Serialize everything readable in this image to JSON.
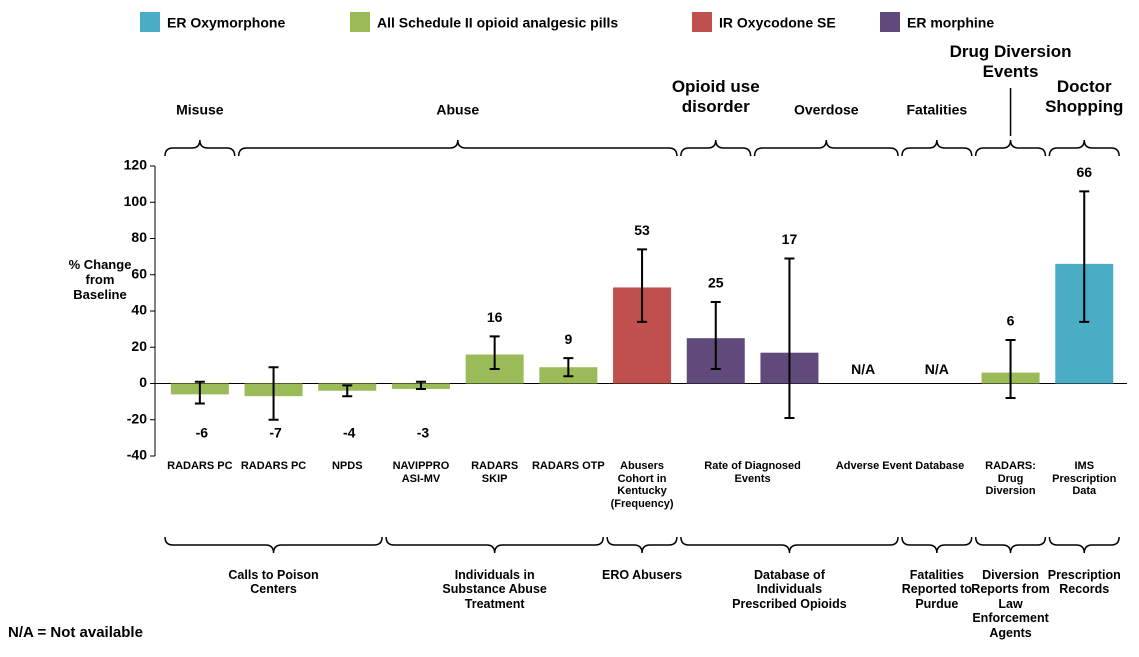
{
  "chart_data": {
    "type": "bar",
    "legend": [
      {
        "name": "ER Oxymorphone",
        "color": "#4bacc6"
      },
      {
        "name": "All Schedule II opioid analgesic pills",
        "color": "#9bbb59"
      },
      {
        "name": "IR Oxycodone SE",
        "color": "#c0504d"
      },
      {
        "name": "ER morphine",
        "color": "#604a7b"
      }
    ],
    "y_label": "% Change from Baseline",
    "categories": [
      "RADARS PC",
      "RADARS PC",
      "NPDS",
      "NAVIPPRO ASI-MV",
      "RADARS SKIP",
      "RADARS OTP",
      "Abusers Cohort in Kentucky (Frequency)",
      "Rate of Diagnosed Events",
      null,
      "Adverse Event Database",
      null,
      "RADARS: Drug Diversion",
      "IMS Prescription Data"
    ],
    "values": [
      -6,
      -7,
      -4,
      -3,
      16,
      9,
      53,
      25,
      17,
      null,
      null,
      6,
      66
    ],
    "value_labels": [
      null,
      null,
      null,
      null,
      null,
      null,
      null,
      null,
      null,
      "N/A",
      "N/A",
      null,
      null
    ],
    "error_low": [
      -11,
      -20,
      -7,
      -3,
      8,
      4,
      34,
      8,
      -19,
      null,
      null,
      -8,
      34
    ],
    "error_high": [
      1,
      9,
      -1,
      1,
      26,
      14,
      74,
      45,
      69,
      null,
      null,
      24,
      106
    ],
    "colors": [
      "#9bbb59",
      "#9bbb59",
      "#9bbb59",
      "#9bbb59",
      "#9bbb59",
      "#9bbb59",
      "#c0504d",
      "#604a7b",
      "#604a7b",
      null,
      null,
      "#9bbb59",
      "#4bacc6"
    ],
    "ylim": [
      -40,
      120
    ],
    "yticks": [
      120,
      100,
      80,
      60,
      40,
      20,
      0,
      -20,
      -40
    ],
    "top_groups": [
      {
        "label": "Misuse",
        "first": 0,
        "last": 0
      },
      {
        "label": "Abuse",
        "first": 1,
        "last": 6
      },
      {
        "label": "Opioid use disorder",
        "first": 7,
        "last": 7
      },
      {
        "label": "Overdose",
        "first": 8,
        "last": 9
      },
      {
        "label": "Fatalities",
        "first": 10,
        "last": 10
      },
      {
        "label": "Drug Diversion Events",
        "first": 11,
        "last": 11
      },
      {
        "label": "Doctor Shopping",
        "first": 12,
        "last": 12
      }
    ],
    "bottom_groups": [
      {
        "label": "Calls to Poison Centers",
        "first": 0,
        "last": 2
      },
      {
        "label": "Individuals in Substance Abuse Treatment",
        "first": 3,
        "last": 5
      },
      {
        "label": "ERO Abusers",
        "first": 6,
        "last": 6
      },
      {
        "label": "Database of Individuals Prescribed Opioids",
        "first": 7,
        "last": 9
      },
      {
        "label": "Fatalities Reported to Purdue",
        "first": 10,
        "last": 10
      },
      {
        "label": "Diversion Reports from Law Enforcement Agents",
        "first": 11,
        "last": 11
      },
      {
        "label": "Prescription Records",
        "first": 12,
        "last": 12
      }
    ],
    "footnote": "N/A = Not available"
  }
}
